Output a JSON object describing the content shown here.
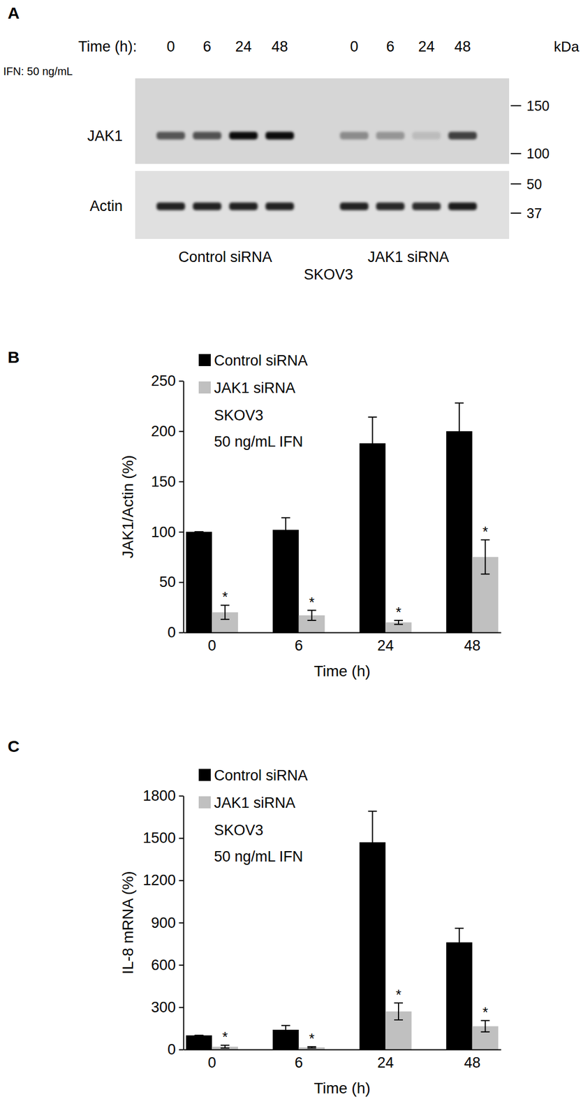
{
  "blot": {
    "label": "A",
    "time_label": "Time (h):",
    "treatment": "IFN: 50 ng/mL",
    "unit": "kDa",
    "cell_line": "SKOV3",
    "groups": [
      {
        "name": "Control siRNA",
        "times": [
          0,
          6,
          24,
          48
        ]
      },
      {
        "name": "JAK1 siRNA",
        "times": [
          0,
          6,
          24,
          48
        ]
      }
    ],
    "rows": [
      {
        "name": "JAK1",
        "markers": [
          150,
          100
        ],
        "intensity": [
          [
            0.6,
            0.62,
            0.95,
            0.95
          ],
          [
            0.35,
            0.3,
            0.12,
            0.7
          ]
        ]
      },
      {
        "name": "Actin",
        "markers": [
          50,
          37
        ],
        "intensity": [
          [
            0.85,
            0.85,
            0.85,
            0.85
          ],
          [
            0.85,
            0.82,
            0.8,
            0.88
          ]
        ]
      }
    ]
  },
  "chart_data": [
    {
      "label": "B",
      "type": "bar",
      "categories": [
        "0",
        "6",
        "24",
        "48"
      ],
      "x_label": "Time (h)",
      "y_label": "JAK1/Actin (%)",
      "annotations": [
        "SKOV3",
        "50 ng/mL IFN"
      ],
      "legend": "upper left",
      "ylim": [
        0,
        250
      ],
      "yticks": [
        0,
        50,
        100,
        150,
        200,
        250
      ],
      "series": [
        {
          "name": "Control siRNA",
          "color": "#000000",
          "values": [
            100,
            102,
            188,
            200
          ],
          "errors": [
            0,
            12,
            26,
            28
          ]
        },
        {
          "name": "JAK1 siRNA",
          "color": "#c0c0c0",
          "values": [
            20,
            17,
            10,
            75
          ],
          "errors": [
            7,
            5,
            2,
            17
          ],
          "significance": [
            "*",
            "*",
            "*",
            "*"
          ]
        }
      ]
    },
    {
      "label": "C",
      "type": "bar",
      "categories": [
        "0",
        "6",
        "24",
        "48"
      ],
      "x_label": "Time (h)",
      "y_label": "IL-8 mRNA (%)",
      "annotations": [
        "SKOV3",
        "50 ng/mL IFN"
      ],
      "legend": "upper left",
      "ylim": [
        0,
        1800
      ],
      "yticks": [
        0,
        300,
        600,
        900,
        1200,
        1500,
        1800
      ],
      "series": [
        {
          "name": "Control siRNA",
          "color": "#000000",
          "values": [
            100,
            140,
            1470,
            760
          ],
          "errors": [
            0,
            30,
            220,
            100
          ]
        },
        {
          "name": "JAK1 siRNA",
          "color": "#c0c0c0",
          "values": [
            20,
            15,
            270,
            165
          ],
          "errors": [
            10,
            5,
            60,
            40
          ],
          "significance": [
            "*",
            "*",
            "*",
            "*"
          ]
        }
      ]
    }
  ]
}
